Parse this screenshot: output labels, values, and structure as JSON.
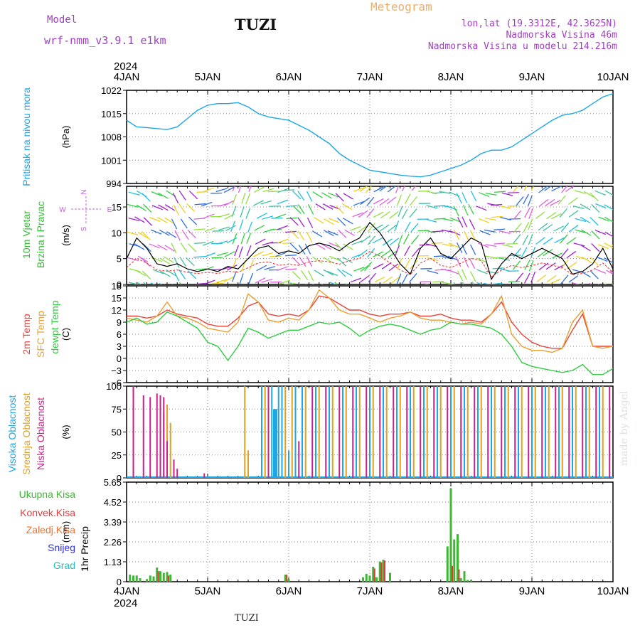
{
  "header": {
    "model_label": "Model",
    "model_name": "wrf-nmm_v3.9.1 e1km",
    "meteogram_label": "Meteogram",
    "station_title": "TUZI",
    "lonlat": "lon,lat (19.3312E, 42.3625N)",
    "altitude": "Nadmorska Visina 46m",
    "model_altitude": "Nadmorska Visina u modelu 214.216m"
  },
  "footer": {
    "station": "TUZI",
    "credit": "made by Angel"
  },
  "colors": {
    "pressure": "#1ea7e6",
    "temp2m": "#e8443a",
    "sfc_temp": "#e8a030",
    "dewpt": "#2ecc40",
    "high_cloud": "#1ea7e6",
    "mid_cloud": "#e0a020",
    "low_cloud": "#cc1f8a",
    "precip_total": "#3cb832",
    "precip_conv": "#e03a3a",
    "precip_frozen": "#f07030",
    "snow": "#3030e0",
    "hail": "#20c0c0"
  },
  "chart_data": [
    {
      "type": "line",
      "panel": "pressure",
      "ylabel": "Pritisak na nivou mora",
      "unit": "(hPa)",
      "x_unit": "hours since 4JAN 00",
      "yticks": [
        994,
        1001,
        1008,
        1015,
        1022
      ],
      "ylim": [
        994,
        1022
      ],
      "xlim": [
        0,
        144
      ],
      "grid": "dotted",
      "series": [
        {
          "color_key": "pressure",
          "x": [
            0,
            3,
            6,
            9,
            12,
            15,
            18,
            21,
            24,
            27,
            30,
            33,
            36,
            39,
            42,
            45,
            48,
            51,
            54,
            57,
            60,
            63,
            66,
            69,
            72,
            75,
            78,
            81,
            84,
            87,
            90,
            93,
            96,
            99,
            102,
            105,
            108,
            111,
            114,
            117,
            120,
            123,
            126,
            129,
            132,
            135,
            138,
            141,
            144
          ],
          "y": [
            1013,
            1011,
            1010.8,
            1010.5,
            1010.2,
            1011,
            1013.5,
            1016,
            1017.5,
            1018,
            1018,
            1018.3,
            1017,
            1015,
            1014,
            1013.5,
            1013,
            1011.5,
            1010,
            1008,
            1006,
            1003,
            1001,
            999.5,
            998,
            997.5,
            997,
            996.5,
            996.2,
            996,
            996.5,
            997.5,
            998.5,
            999.5,
            1001,
            1003,
            1004,
            1004,
            1005,
            1007,
            1009,
            1011,
            1013,
            1014.5,
            1015,
            1016,
            1018,
            1020,
            1021
          ]
        }
      ]
    },
    {
      "type": "line",
      "panel": "wind",
      "ylabel": "10m Vjetar Brzina i Pravac",
      "unit": "(m/s)",
      "compass": {
        "n": "N",
        "s": "S",
        "w": "W",
        "e": "E"
      },
      "yticks": [
        0,
        5,
        10,
        15
      ],
      "ylim": [
        0,
        19
      ],
      "xlim": [
        0,
        144
      ],
      "series": [
        {
          "name": "speed",
          "x": [
            0,
            3,
            6,
            9,
            12,
            15,
            18,
            21,
            24,
            27,
            30,
            33,
            36,
            39,
            42,
            45,
            48,
            51,
            54,
            57,
            60,
            63,
            66,
            69,
            72,
            75,
            78,
            81,
            84,
            87,
            90,
            93,
            96,
            99,
            102,
            105,
            108,
            111,
            114,
            117,
            120,
            123,
            126,
            129,
            132,
            135,
            138,
            141,
            144
          ],
          "y": [
            5,
            9,
            7,
            4,
            3.5,
            4,
            3,
            2.5,
            3,
            2.5,
            3.5,
            3,
            5,
            7,
            7.5,
            6,
            6.5,
            6,
            7.5,
            8,
            7.5,
            6.5,
            8,
            9,
            12,
            10,
            7,
            4,
            2,
            7,
            9,
            6,
            5,
            7,
            9,
            8,
            1,
            4,
            6,
            5,
            6,
            7,
            6,
            5,
            2,
            2.5,
            4,
            7,
            3
          ]
        }
      ]
    },
    {
      "type": "line",
      "panel": "temperature",
      "ylabel_lines": [
        "2m Temp",
        "SFC Temp",
        "dewpt Temp"
      ],
      "unit": "(C)",
      "yticks": [
        -6,
        -3,
        0,
        3,
        6,
        9,
        12,
        15,
        18
      ],
      "ylim": [
        -6,
        18
      ],
      "xlim": [
        0,
        144
      ],
      "series": [
        {
          "name": "2m Temp",
          "color_key": "temp2m",
          "x": [
            0,
            3,
            6,
            9,
            12,
            15,
            18,
            21,
            24,
            27,
            30,
            33,
            36,
            39,
            42,
            45,
            48,
            51,
            54,
            57,
            60,
            63,
            66,
            69,
            72,
            75,
            78,
            81,
            84,
            87,
            90,
            93,
            96,
            99,
            102,
            105,
            108,
            111,
            114,
            117,
            120,
            123,
            126,
            129,
            132,
            135,
            138,
            141,
            144
          ],
          "y": [
            10.5,
            10.5,
            10,
            10.5,
            12,
            11,
            10.5,
            10,
            8.5,
            8,
            8,
            10,
            13,
            14,
            11,
            10.5,
            11,
            10.5,
            12,
            15.5,
            15,
            13.5,
            12,
            12,
            11,
            10.5,
            11,
            11,
            11.5,
            10.5,
            10.5,
            11,
            10,
            9.5,
            9.5,
            9,
            11,
            14,
            9,
            6,
            4,
            3,
            2.5,
            2.5,
            7,
            11,
            3,
            3,
            3
          ]
        },
        {
          "name": "SFC Temp",
          "color_key": "sfc_temp",
          "x": [
            0,
            3,
            6,
            9,
            12,
            15,
            18,
            21,
            24,
            27,
            30,
            33,
            36,
            39,
            42,
            45,
            48,
            51,
            54,
            57,
            60,
            63,
            66,
            69,
            72,
            75,
            78,
            81,
            84,
            87,
            90,
            93,
            96,
            99,
            102,
            105,
            108,
            111,
            114,
            117,
            120,
            123,
            126,
            129,
            132,
            135,
            138,
            141,
            144
          ],
          "y": [
            10,
            9.5,
            9,
            10.5,
            14,
            10.5,
            10,
            9,
            7.5,
            7,
            6.5,
            9,
            16,
            14,
            9.5,
            9,
            10,
            9.5,
            12,
            17,
            15,
            12,
            11,
            11,
            10,
            9,
            10,
            10.5,
            11.5,
            10,
            9.5,
            9.5,
            9,
            8.5,
            9,
            8.5,
            11,
            15.5,
            6,
            3,
            2,
            2,
            1.5,
            2.5,
            9,
            12,
            3,
            2.5,
            3
          ]
        },
        {
          "name": "dewpt Temp",
          "color_key": "dewpt",
          "x": [
            0,
            3,
            6,
            9,
            12,
            15,
            18,
            21,
            24,
            27,
            30,
            33,
            36,
            39,
            42,
            45,
            48,
            51,
            54,
            57,
            60,
            63,
            66,
            69,
            72,
            75,
            78,
            81,
            84,
            87,
            90,
            93,
            96,
            99,
            102,
            105,
            108,
            111,
            114,
            117,
            120,
            123,
            126,
            129,
            132,
            135,
            138,
            141,
            144
          ],
          "y": [
            9,
            10,
            8.5,
            9,
            11.5,
            10.5,
            9,
            7.5,
            4,
            3,
            -0.5,
            3,
            7.5,
            6.5,
            5,
            6,
            7,
            7,
            8,
            9,
            8.5,
            9,
            7.5,
            5.5,
            7,
            8,
            8.5,
            8,
            7,
            6,
            7,
            7.5,
            9,
            8.5,
            8.5,
            8,
            7.5,
            6,
            3,
            -1,
            -2,
            -2.5,
            -3,
            -3.5,
            -3,
            -1.5,
            -4,
            -4,
            -2.5
          ]
        }
      ]
    },
    {
      "type": "bar",
      "panel": "cloud",
      "ylabel_lines": [
        "Visoka Oblacnost",
        "Srednja Oblacnost",
        "Niska Oblacnost"
      ],
      "unit": "(%)",
      "yticks": [
        0,
        25,
        50,
        75,
        100
      ],
      "ylim": [
        0,
        100
      ],
      "xlim": [
        0,
        144
      ],
      "series": [
        {
          "name": "Visoka Oblacnost",
          "color_key": "high_cloud",
          "x": [
            40,
            43,
            44,
            45,
            46,
            48,
            50,
            52,
            56,
            60,
            64,
            68,
            72,
            76,
            80,
            84,
            88,
            92,
            96,
            100,
            104,
            108,
            112,
            116,
            120,
            124,
            128,
            132,
            136,
            140
          ],
          "y": [
            100,
            100,
            75,
            100,
            100,
            30,
            100,
            100,
            100,
            100,
            100,
            100,
            100,
            100,
            100,
            100,
            100,
            100,
            100,
            100,
            100,
            100,
            100,
            100,
            100,
            100,
            100,
            100,
            100,
            100
          ]
        },
        {
          "name": "Srednja Oblacnost",
          "color_key": "mid_cloud",
          "x": [
            11,
            12,
            13,
            14,
            35,
            36,
            41,
            47,
            49,
            53,
            57,
            61,
            65,
            69,
            73,
            77,
            81,
            85,
            89,
            93,
            97,
            101,
            105,
            109,
            113,
            117,
            121,
            125,
            129,
            133,
            137,
            141
          ],
          "y": [
            70,
            80,
            60,
            15,
            100,
            30,
            100,
            100,
            100,
            100,
            100,
            100,
            100,
            100,
            100,
            100,
            100,
            100,
            100,
            100,
            100,
            100,
            100,
            100,
            100,
            100,
            100,
            100,
            100,
            100,
            100,
            100
          ]
        },
        {
          "name": "Niska Oblacnost",
          "color_key": "low_cloud",
          "x": [
            2,
            5,
            7,
            9,
            10,
            11,
            12,
            14,
            15,
            23,
            42,
            51,
            55,
            59,
            63,
            67,
            71,
            75,
            79,
            83,
            87,
            91,
            95,
            99,
            103,
            107,
            111,
            115,
            119,
            123,
            127,
            131,
            135,
            139,
            143
          ],
          "y": [
            100,
            90,
            88,
            92,
            90,
            88,
            40,
            20,
            10,
            5,
            100,
            40,
            100,
            100,
            100,
            100,
            100,
            100,
            100,
            100,
            100,
            100,
            100,
            100,
            100,
            100,
            100,
            100,
            100,
            100,
            100,
            100,
            100,
            100,
            100
          ]
        }
      ]
    },
    {
      "type": "bar",
      "panel": "precipitation",
      "legend_lines": [
        "Ukupna Kisa",
        "Konvek.Kisa",
        "Zaledj.Kisa",
        "Snijeg",
        "Grad"
      ],
      "ylabel": "1hr Precip",
      "unit": "(mm)",
      "yticks": [
        "0",
        "1.13",
        "2.26",
        "3.39",
        "4.52",
        "5.65"
      ],
      "ylim": [
        0,
        5.65
      ],
      "xlim": [
        0,
        144
      ],
      "x_tick_labels": [
        "4JAN",
        "5JAN",
        "6JAN",
        "7JAN",
        "8JAN",
        "9JAN",
        "10JAN"
      ],
      "year_label": "2024",
      "series": [
        {
          "name": "Ukupna Kisa",
          "color_key": "precip_total",
          "x": [
            1,
            2,
            3,
            4,
            6,
            7,
            8,
            9,
            10,
            11,
            12,
            13,
            47,
            48,
            70,
            71,
            72,
            73,
            74,
            75,
            76,
            78,
            95,
            96,
            97,
            98,
            99,
            100,
            101,
            102
          ],
          "y": [
            0.4,
            0.35,
            0.35,
            0.2,
            0.15,
            0.35,
            0.3,
            0.8,
            0.6,
            0.5,
            0.55,
            0.4,
            0.4,
            0.15,
            0.25,
            0.45,
            0.35,
            0.85,
            0.25,
            1.15,
            1.25,
            0.5,
            2.0,
            5.3,
            2.4,
            2.7,
            0.2,
            0.6,
            0.1,
            0.1
          ]
        },
        {
          "name": "Konvek.Kisa",
          "color_key": "precip_conv",
          "x": [
            9,
            12,
            47,
            73,
            75,
            76,
            96,
            98
          ],
          "y": [
            0.6,
            0.35,
            0.4,
            0.75,
            1.1,
            1.2,
            0.9,
            0.7
          ]
        }
      ]
    }
  ]
}
